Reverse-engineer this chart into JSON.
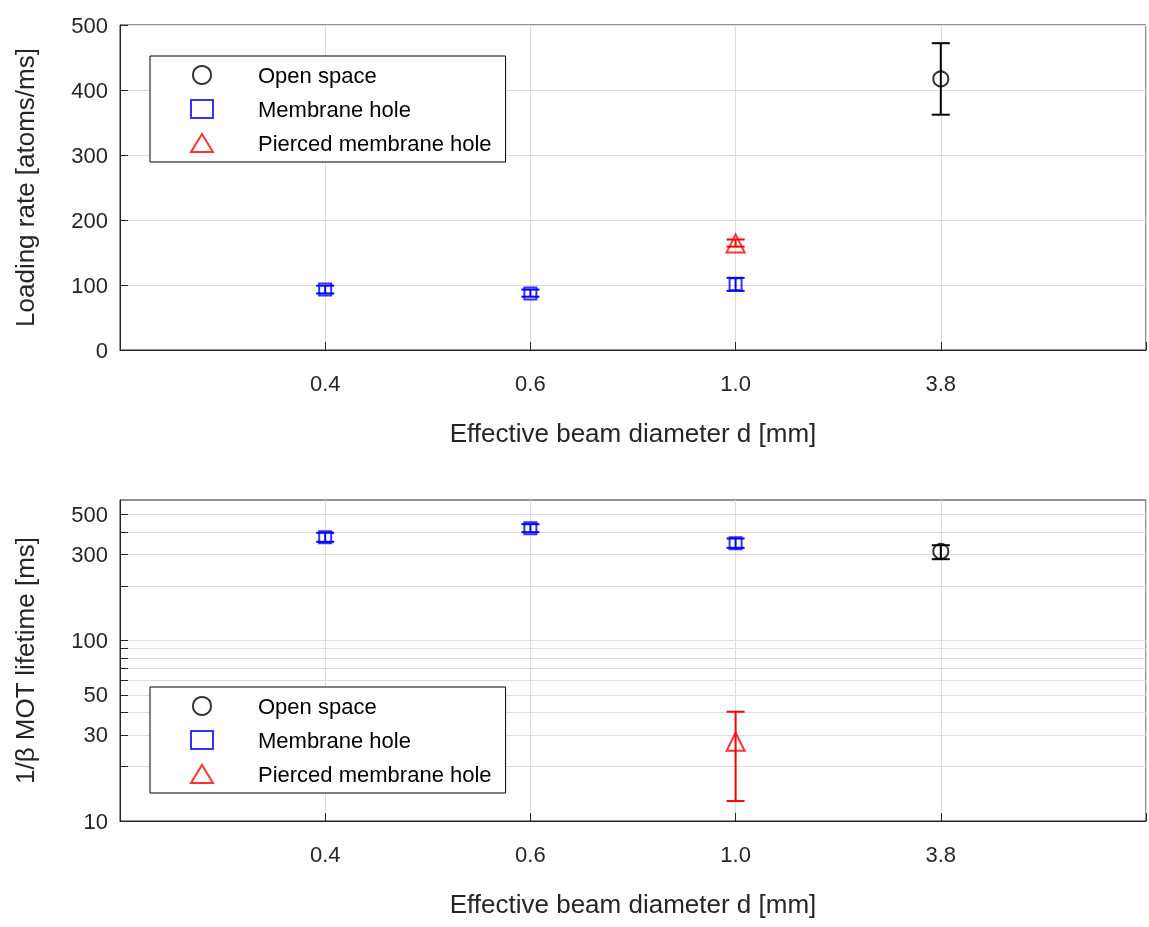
{
  "chart_data": [
    {
      "type": "scatter",
      "xlabel": "Effective beam diameter d [mm]",
      "ylabel": "Loading rate [atoms/ms]",
      "categories": [
        null,
        "0.4",
        "0.6",
        "1.0",
        "3.8",
        null
      ],
      "ylim": [
        0,
        500
      ],
      "yticks": [
        0,
        100,
        200,
        300,
        400,
        500
      ],
      "grid": true,
      "legend": "top left",
      "series": [
        {
          "name": "Open space",
          "color": "#000000",
          "marker": "circle",
          "values": [
            null,
            null,
            null,
            null,
            417,
            null
          ],
          "errors": [
            null,
            null,
            null,
            null,
            [
              362,
              472
            ],
            null
          ]
        },
        {
          "name": "Membrane hole",
          "color": "#0000ff",
          "marker": "square",
          "values": [
            null,
            93,
            87,
            101,
            null,
            null
          ],
          "errors": [
            null,
            [
              87,
              99
            ],
            [
              82,
              93
            ],
            [
              91,
              111
            ],
            null,
            null
          ]
        },
        {
          "name": "Pierced membrane hole",
          "color": "#ff0000",
          "marker": "triangle",
          "values": [
            null,
            null,
            null,
            164,
            null,
            null
          ],
          "errors": [
            null,
            null,
            null,
            [
              159,
              170
            ],
            null,
            null
          ]
        }
      ]
    },
    {
      "type": "scatter",
      "xlabel": "Effective beam diameter d [mm]",
      "ylabel": "1/β MOT lifetime [ms]",
      "categories": [
        null,
        "0.4",
        "0.6",
        "1.0",
        "3.8",
        null
      ],
      "log": "y",
      "ylim": [
        10,
        600
      ],
      "yticks": [
        10,
        {
          "value": 20,
          "label": null
        },
        30,
        {
          "value": 40,
          "label": null
        },
        50,
        {
          "value": 60,
          "label": null
        },
        {
          "value": 70,
          "label": null
        },
        {
          "value": 80,
          "label": null
        },
        {
          "value": 90,
          "label": null
        },
        100,
        {
          "value": 200,
          "label": null
        },
        300,
        {
          "value": 400,
          "label": null
        },
        500
      ],
      "grid": true,
      "legend": "bottom left",
      "series": [
        {
          "name": "Open space",
          "color": "#000000",
          "marker": "circle",
          "values": [
            null,
            null,
            null,
            null,
            312,
            null
          ],
          "errors": [
            null,
            null,
            null,
            null,
            [
              282,
              337
            ],
            null
          ]
        },
        {
          "name": "Membrane hole",
          "color": "#0000ff",
          "marker": "square",
          "values": [
            null,
            373,
            419,
            346,
            null,
            null
          ],
          "errors": [
            null,
            [
              352,
              395
            ],
            [
              398,
              441
            ],
            [
              326,
              367
            ],
            null,
            null
          ]
        },
        {
          "name": "Pierced membrane hole",
          "color": "#ff0000",
          "marker": "triangle",
          "values": [
            null,
            null,
            null,
            27.5,
            null,
            null
          ],
          "errors": [
            null,
            null,
            null,
            [
              12.9,
              40.3
            ],
            null,
            null
          ]
        }
      ]
    }
  ]
}
